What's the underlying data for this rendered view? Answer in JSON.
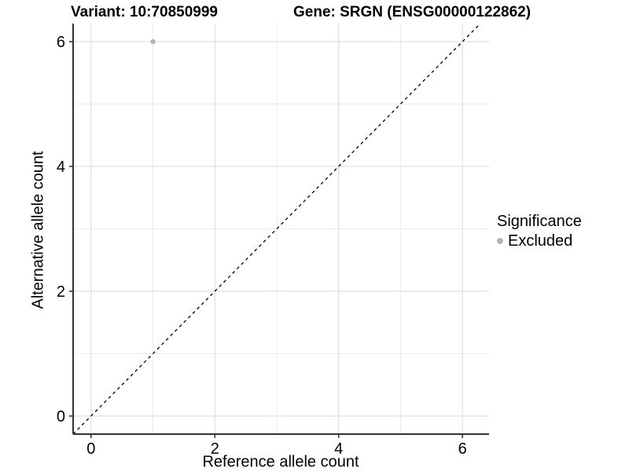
{
  "figure": {
    "title_left": "Variant: 10:70850999",
    "title_right": "Gene: SRGN (ENSG00000122862)"
  },
  "legend": {
    "title": "Significance",
    "items": [
      {
        "label": "Excluded",
        "color": "#b4b4b4"
      }
    ]
  },
  "chart_data": {
    "type": "scatter",
    "title": "Variant: 10:70850999 — Gene: SRGN (ENSG00000122862)",
    "xlabel": "Reference allele count",
    "ylabel": "Alternative allele count",
    "xlim": [
      -0.29,
      6.43
    ],
    "ylim": [
      -0.29,
      6.29
    ],
    "x_ticks": [
      0,
      2,
      4,
      6
    ],
    "y_ticks": [
      0,
      2,
      4,
      6
    ],
    "x_minor_grid": [
      1,
      3,
      5
    ],
    "y_minor_grid": [
      1,
      3,
      5
    ],
    "grid": true,
    "legend_position": "right",
    "series": [
      {
        "name": "Excluded",
        "color": "#b4b4b4",
        "points": [
          {
            "x": 1,
            "y": 6
          }
        ]
      }
    ],
    "reference_line": {
      "equation": "y = x",
      "style": "dashed",
      "color": "#000000"
    },
    "style_colors": {
      "grid_major": "#e2e2e2",
      "grid_minor": "#ececec",
      "axis_line": "#333333",
      "tick_text": "#000000"
    }
  }
}
